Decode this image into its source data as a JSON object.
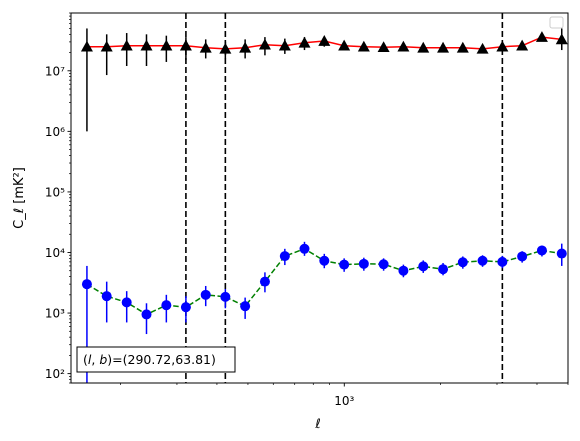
{
  "chart_data": {
    "type": "line",
    "title": "",
    "xlabel": "ℓ",
    "ylabel": "C_ℓ  [mK²]",
    "x_scale": "log",
    "y_scale": "log",
    "xlim": [
      140,
      5000
    ],
    "ylim": [
      70,
      90000000
    ],
    "x_tick_labels": [
      {
        "value": 1000,
        "label": "10³"
      }
    ],
    "y_tick_labels": [
      {
        "value": 100,
        "label": "10²"
      },
      {
        "value": 1000,
        "label": "10³"
      },
      {
        "value": 10000,
        "label": "10⁴"
      },
      {
        "value": 100000,
        "label": "10⁵"
      },
      {
        "value": 1000000,
        "label": "10⁶"
      },
      {
        "value": 10000000,
        "label": "10⁷"
      }
    ],
    "grid": false,
    "legend": {
      "placement": "top-right",
      "entries": []
    },
    "x": [
      157,
      181,
      209,
      241,
      278,
      320,
      369,
      425,
      490,
      565,
      652,
      751,
      866,
      999,
      1151,
      1327,
      1530,
      1765,
      2035,
      2346,
      2704,
      3118,
      3595,
      4145,
      4780
    ],
    "series": [
      {
        "style": "red solid line, black triangle markers",
        "color": "#ff0000",
        "marker_color": "#000000",
        "marker": "triangle",
        "values": [
          25000000,
          25000000,
          26000000,
          26000000,
          26000000,
          26000000,
          24000000,
          23000000,
          24000000,
          27000000,
          26000000,
          29000000,
          31000000,
          26000000,
          25000000,
          24500000,
          25000000,
          24000000,
          24000000,
          24000000,
          23000000,
          25000000,
          26000000,
          36000000,
          33000000
        ],
        "err_low": [
          1000000,
          8500000,
          12000000,
          12000000,
          14000000,
          15000000,
          16000000,
          16000000,
          16000000,
          18000000,
          19000000,
          22000000,
          25000000,
          22000000,
          22000000,
          21500000,
          22000000,
          21000000,
          21000000,
          21000000,
          20000000,
          22000000,
          23000000,
          31000000,
          22000000
        ],
        "err_high": [
          50000000,
          40000000,
          42000000,
          40000000,
          38000000,
          36000000,
          33000000,
          30000000,
          33000000,
          36000000,
          34000000,
          36000000,
          37000000,
          30000000,
          29000000,
          28000000,
          28000000,
          27000000,
          27000000,
          27000000,
          26000000,
          28000000,
          29000000,
          42000000,
          50000000
        ]
      },
      {
        "style": "green dashed line, blue circle markers",
        "color": "#008000",
        "marker_color": "#0000ff",
        "marker": "circle",
        "values": [
          3000,
          1900,
          1500,
          950,
          1350,
          1250,
          2000,
          1850,
          1300,
          3300,
          8700,
          11500,
          7300,
          6300,
          6500,
          6400,
          5000,
          5900,
          5300,
          6900,
          7300,
          7000,
          8600,
          10800,
          9600
        ],
        "err_low": [
          70,
          700,
          700,
          450,
          700,
          700,
          1300,
          1200,
          800,
          2200,
          6200,
          8800,
          5500,
          4800,
          5000,
          5000,
          3900,
          4600,
          4200,
          5400,
          5800,
          5500,
          6800,
          8600,
          6000
        ],
        "err_high": [
          6000,
          3300,
          2300,
          1450,
          2000,
          1900,
          2800,
          2500,
          1800,
          4700,
          11500,
          15000,
          9500,
          8000,
          8200,
          8000,
          6300,
          7400,
          6700,
          8600,
          9000,
          8800,
          10500,
          13000,
          14000
        ]
      }
    ],
    "vertical_dashed_lines_at_x": [
      320,
      425,
      3118
    ],
    "annotation": "(l, b)=(290.72,63.81)"
  },
  "annotation_box": {
    "prefix": "(",
    "italic_l": "l",
    "comma": ", ",
    "italic_b": "b",
    "suffix": ")=(290.72,63.81)"
  },
  "colors": {
    "series_a_line": "#ff0000",
    "series_a_marker": "#000000",
    "series_b_line": "#008000",
    "series_b_marker": "#0000ff",
    "vlines": "#000000",
    "frame": "#000000"
  }
}
